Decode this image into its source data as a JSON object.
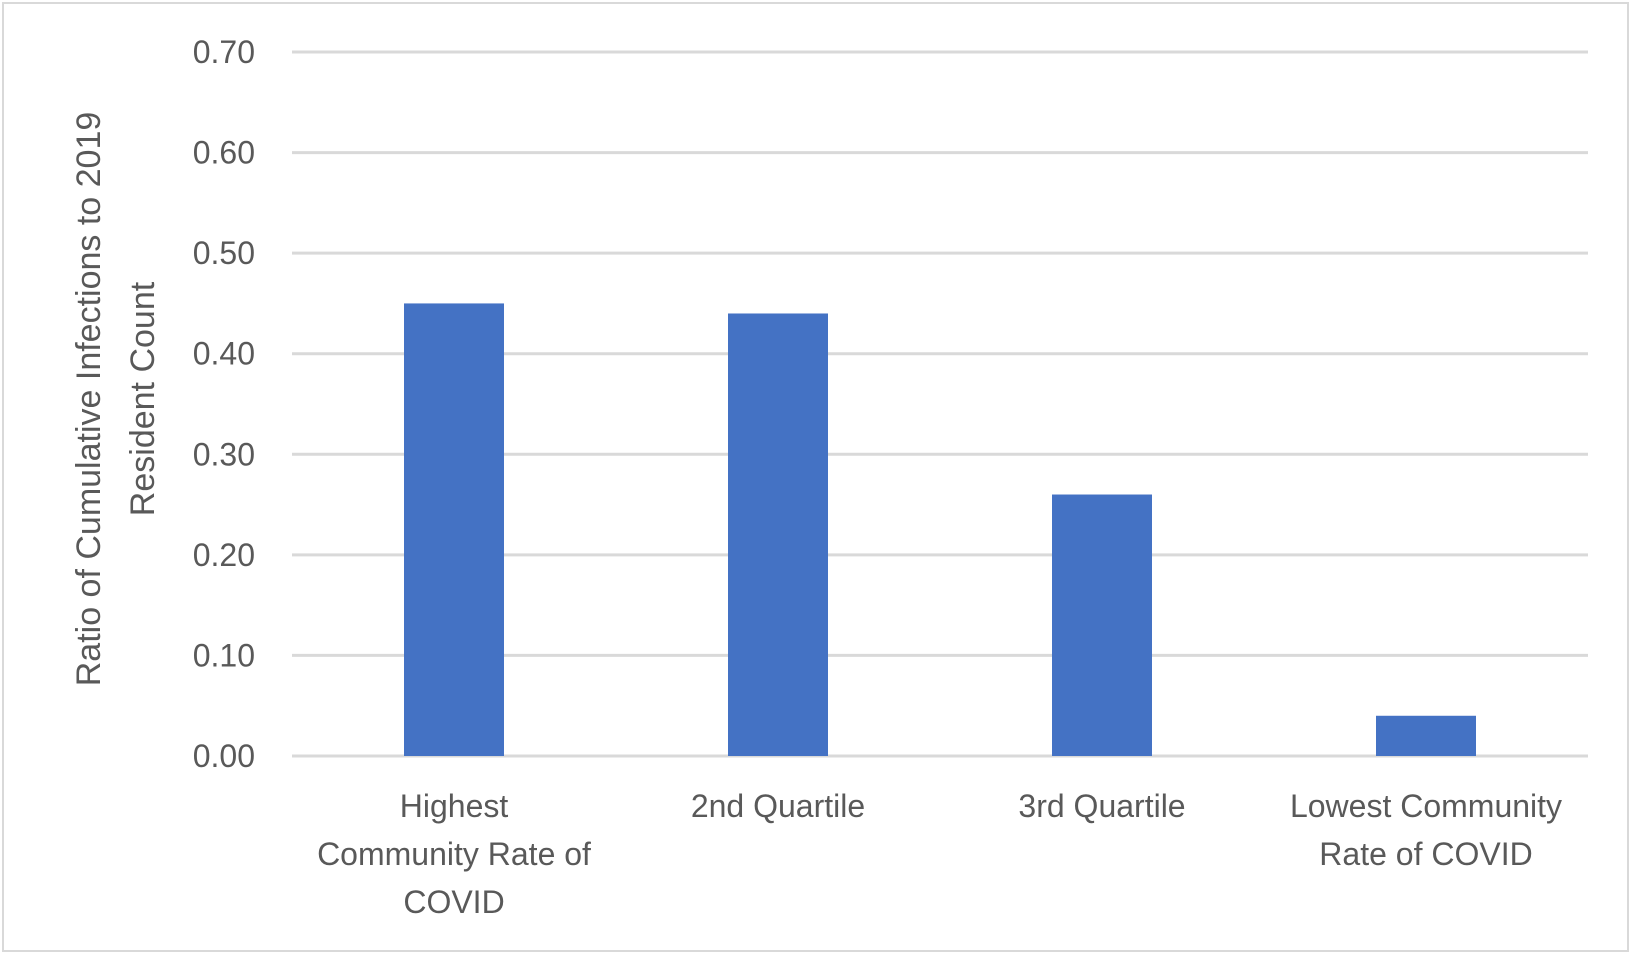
{
  "chart_data": {
    "type": "bar",
    "title": "",
    "xlabel": "",
    "ylabel": "Ratio of Cumulative Infections to 2019 Resident Count",
    "ylabel_lines": [
      "Ratio of Cumulative Infections to 2019",
      "Resident Count"
    ],
    "categories": [
      "Highest Community Rate of COVID",
      "2nd Quartile",
      "3rd Quartile",
      "Lowest Community Rate of COVID"
    ],
    "category_lines": [
      [
        "Highest",
        "Community Rate of",
        "COVID"
      ],
      [
        "2nd Quartile"
      ],
      [
        "3rd Quartile"
      ],
      [
        "Lowest Community",
        "Rate of COVID"
      ]
    ],
    "values": [
      0.45,
      0.44,
      0.26,
      0.04
    ],
    "ylim": [
      0,
      0.7
    ],
    "yticks": [
      0,
      0.1,
      0.2,
      0.3,
      0.4,
      0.5,
      0.6,
      0.7
    ],
    "ytick_labels": [
      "0.00",
      "0.10",
      "0.20",
      "0.30",
      "0.40",
      "0.50",
      "0.60",
      "0.70"
    ],
    "grid": true,
    "legend": "none",
    "colors": {
      "bar": "#4472c4",
      "grid": "#d9d9d9",
      "text": "#595959",
      "border": "#d9d9d9"
    }
  }
}
